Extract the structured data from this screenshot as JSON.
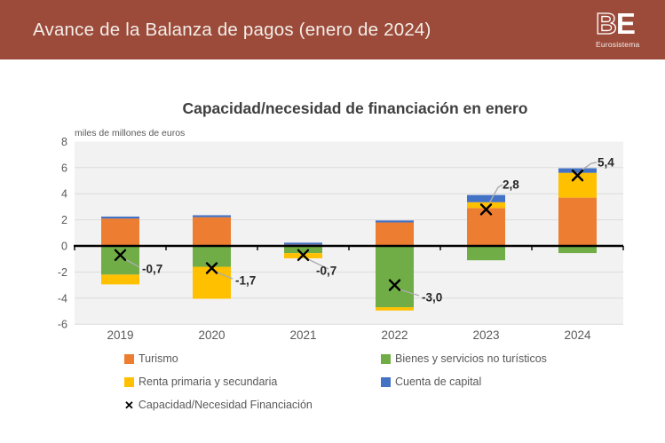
{
  "header": {
    "title": "Avance de la Balanza de pagos (enero de 2024)",
    "bg_color": "#9C4B3B",
    "logo": {
      "b": "B",
      "e": "E",
      "subtitle": "Eurosistema"
    }
  },
  "chart": {
    "title": "Capacidad/necesidad de financiación en enero",
    "unit_label": "miles de millones de euros"
  },
  "chart_data": {
    "type": "bar",
    "subtype": "stacked-columns-with-net-x-markers",
    "title": "Capacidad/necesidad de financiación en enero",
    "ylabel": "miles de millones de euros",
    "categories": [
      "2019",
      "2020",
      "2021",
      "2022",
      "2023",
      "2024"
    ],
    "series": [
      {
        "name": "Turismo",
        "color": "#ED7D31",
        "values": [
          2.1,
          2.2,
          0.1,
          1.8,
          2.9,
          3.7
        ]
      },
      {
        "name": "Bienes y servicios no turísticos",
        "color": "#70AD47",
        "values": [
          -2.2,
          -1.6,
          -0.55,
          -4.7,
          -1.1,
          -0.55
        ]
      },
      {
        "name": "Renta primaria y secundaria",
        "color": "#FFC000",
        "values": [
          -0.75,
          -2.45,
          -0.4,
          -0.25,
          0.45,
          1.9
        ]
      },
      {
        "name": "Cuenta de capital",
        "color": "#4472C4",
        "values": [
          0.15,
          0.15,
          0.15,
          0.15,
          0.55,
          0.35
        ]
      }
    ],
    "marker_series": {
      "name": "Capacidad/Necesidad Financiación",
      "marker_glyph": "✕",
      "color": "#000000",
      "values": [
        -0.7,
        -1.7,
        -0.7,
        -3.0,
        2.8,
        5.4
      ],
      "labels": [
        "-0,7",
        "-1,7",
        "-0,7",
        "-3,0",
        "2,8",
        "5,4"
      ]
    },
    "ylim": [
      -6,
      8
    ],
    "yticks": [
      8,
      6,
      4,
      2,
      0,
      -2,
      -4,
      -6
    ],
    "grid": true,
    "legend_position": "bottom",
    "style": {
      "plot_bg": "#F2F2F2",
      "gridline": "#DCDCDC",
      "axis": "#000000",
      "tick_label": "#595959",
      "data_label": "#262626",
      "leader_line": "#ACACAC",
      "title_color": "#3F3F3F"
    }
  }
}
